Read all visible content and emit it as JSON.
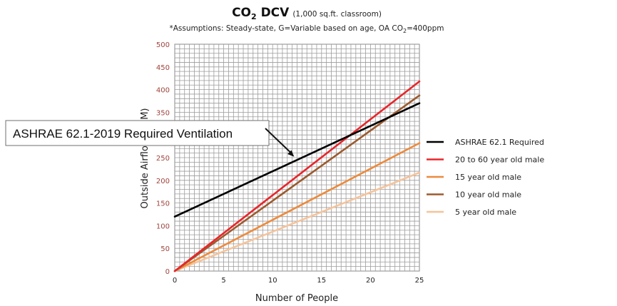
{
  "chart_data": {
    "type": "line",
    "title": "CO",
    "title_sub": "2",
    "title_rest": " DCV",
    "title_note": "(1,000 sq.ft. classroom)",
    "assumptions_prefix": "*Assumptions: Steady-state, G=Variable based on age, OA CO",
    "assumptions_sub": "2",
    "assumptions_suffix": "=400ppm",
    "xlabel": "Number of People",
    "ylabel": "Outside Airflow (CFM)",
    "xlim": [
      0,
      25
    ],
    "ylim": [
      0,
      500
    ],
    "x_ticks": [
      0,
      5,
      10,
      15,
      20,
      25
    ],
    "y_ticks": [
      0,
      50,
      100,
      150,
      200,
      250,
      300,
      350,
      400,
      450,
      500
    ],
    "grid": true,
    "legend_position": "right",
    "series": [
      {
        "name": "ASHRAE 62.1 Required",
        "color": "#000000",
        "x": [
          0,
          25
        ],
        "y": [
          120,
          370
        ]
      },
      {
        "name": "20 to 60 year old male",
        "color": "#e8262b",
        "x": [
          0,
          25
        ],
        "y": [
          0,
          418
        ]
      },
      {
        "name": "15 year old male",
        "color": "#ed8a3c",
        "x": [
          0,
          25
        ],
        "y": [
          0,
          282
        ]
      },
      {
        "name": "10 year old male",
        "color": "#9c5a2e",
        "x": [
          0,
          25
        ],
        "y": [
          0,
          387
        ]
      },
      {
        "name": "5 year old male",
        "color": "#f6c39a",
        "x": [
          0,
          25
        ],
        "y": [
          0,
          217
        ]
      }
    ],
    "annotation": {
      "text": "ASHRAE 62.1-2019 Required Ventilation",
      "target_x": 12.2,
      "target_y": 252
    }
  }
}
